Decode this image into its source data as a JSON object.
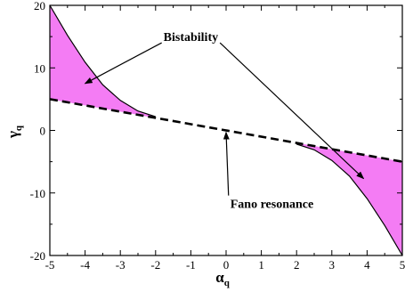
{
  "chart_data": {
    "type": "area",
    "xlabel": "α",
    "xlabel_subscript": "q",
    "ylabel": "γ",
    "ylabel_subscript": "q",
    "xlim": [
      -5,
      5
    ],
    "ylim": [
      -20,
      20
    ],
    "x_ticks": [
      -5,
      -4,
      -3,
      -2,
      -1,
      0,
      1,
      2,
      3,
      4,
      5
    ],
    "y_ticks": [
      -20,
      -10,
      0,
      10,
      20
    ],
    "grid": false,
    "series": [
      {
        "style": "dashed",
        "color": "#000000",
        "x": [
          -5,
          5
        ],
        "y": [
          5,
          -5
        ]
      },
      {
        "style": "solid",
        "color": "#000000",
        "x": [
          -5,
          -4.5,
          -4,
          -3.5,
          -3,
          -2.5,
          -2
        ],
        "y": [
          20,
          15.2,
          10.9,
          7.3,
          4.8,
          3.1,
          2.2
        ]
      },
      {
        "style": "solid",
        "color": "#000000",
        "x": [
          2,
          2.5,
          3,
          3.5,
          4,
          4.5,
          5
        ],
        "y": [
          -2.2,
          -3.1,
          -4.8,
          -7.3,
          -10.9,
          -15.2,
          -20
        ]
      }
    ],
    "shaded_regions": [
      {
        "fill": "#f47cf4",
        "x_range": [
          -5,
          -2
        ]
      },
      {
        "fill": "#f47cf4",
        "x_range": [
          2,
          5
        ]
      }
    ],
    "annotations": [
      {
        "text": "Bistability",
        "text_at": [
          -1.0,
          14.3
        ],
        "arrow_targets": [
          [
            -4.0,
            7.5
          ],
          [
            3.9,
            -7.7
          ]
        ]
      },
      {
        "text": "Fano resonance",
        "text_at": [
          1.3,
          -12.4
        ],
        "arrow_targets": [
          [
            0.0,
            -0.3
          ]
        ]
      }
    ]
  }
}
